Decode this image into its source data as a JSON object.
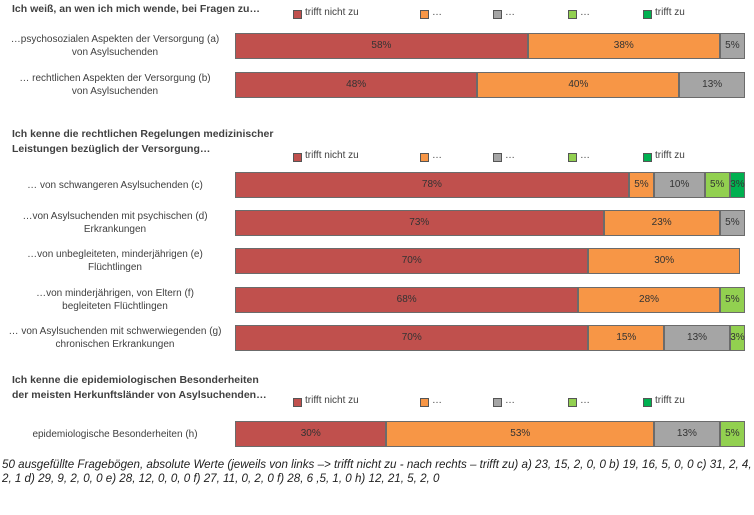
{
  "chart_data": [
    {
      "type": "bar",
      "stacked": true,
      "orientation": "horizontal",
      "title": "Ich weiß, an wen ich mich wende, bei Fragen zu…",
      "categories": [
        "…psychosozialen Aspekten der Versorgung (a)\nvon Asylsuchenden",
        "… rechtlichen Aspekten der Versorgung (b)\nvon Asylsuchenden"
      ],
      "series": [
        {
          "name": "trifft nicht zu",
          "color": "#c0504d",
          "values": [
            58,
            48
          ],
          "value_labels": [
            "58%",
            "48%"
          ]
        },
        {
          "name": "…",
          "color": "#f79646",
          "values": [
            38,
            40
          ],
          "value_labels": [
            "38%",
            "40%"
          ]
        },
        {
          "name": "…",
          "color": "#a5a5a5",
          "values": [
            5,
            13
          ],
          "value_labels": [
            "5%",
            "13%"
          ]
        },
        {
          "name": "…",
          "color": "#92d050",
          "values": [
            0,
            0
          ],
          "value_labels": [
            null,
            null
          ]
        },
        {
          "name": "trifft zu",
          "color": "#00b050",
          "values": [
            0,
            0
          ],
          "value_labels": [
            null,
            null
          ]
        }
      ]
    },
    {
      "type": "bar",
      "stacked": true,
      "orientation": "horizontal",
      "title": "Ich kenne die rechtlichen Regelungen medizinischer\nLeistungen bezüglich der Versorgung…",
      "categories": [
        "… von schwangeren Asylsuchenden (c)",
        "…von Asylsuchenden mit psychischen (d)\nErkrankungen",
        "…von unbegleiteten, minderjährigen (e)\nFlüchtlingen",
        "…von minderjährigen, von Eltern (f)\nbegleiteten Flüchtlingen",
        "… von Asylsuchenden mit schwerwiegenden (g)\nchronischen Erkrankungen"
      ],
      "series": [
        {
          "name": "trifft nicht zu",
          "color": "#c0504d",
          "values": [
            78,
            73,
            70,
            68,
            70
          ],
          "value_labels": [
            "78%",
            "73%",
            "70%",
            "68%",
            "70%"
          ]
        },
        {
          "name": "…",
          "color": "#f79646",
          "values": [
            5,
            23,
            30,
            28,
            15
          ],
          "value_labels": [
            "5%",
            "23%",
            "30%",
            "28%",
            "15%"
          ]
        },
        {
          "name": "…",
          "color": "#a5a5a5",
          "values": [
            10,
            5,
            0,
            0,
            13
          ],
          "value_labels": [
            "10%",
            "5%",
            null,
            null,
            "13%"
          ]
        },
        {
          "name": "…",
          "color": "#92d050",
          "values": [
            5,
            0,
            0,
            5,
            3
          ],
          "value_labels": [
            "5%",
            null,
            null,
            "5%",
            "3%"
          ]
        },
        {
          "name": "trifft zu",
          "color": "#00b050",
          "values": [
            3,
            0,
            0,
            0,
            0
          ],
          "value_labels": [
            "3%",
            null,
            null,
            null,
            null
          ]
        }
      ]
    },
    {
      "type": "bar",
      "stacked": true,
      "orientation": "horizontal",
      "title": "Ich kenne die epidemiologischen Besonderheiten\nder meisten Herkunftsländer von Asylsuchenden…",
      "categories": [
        "epidemiologische Besonderheiten (h)"
      ],
      "series": [
        {
          "name": "trifft nicht zu",
          "color": "#c0504d",
          "values": [
            30
          ],
          "value_labels": [
            "30%"
          ]
        },
        {
          "name": "…",
          "color": "#f79646",
          "values": [
            53
          ],
          "value_labels": [
            "53%"
          ]
        },
        {
          "name": "…",
          "color": "#a5a5a5",
          "values": [
            13
          ],
          "value_labels": [
            "13%"
          ]
        },
        {
          "name": "…",
          "color": "#92d050",
          "values": [
            5
          ],
          "value_labels": [
            "5%"
          ]
        },
        {
          "name": "trifft zu",
          "color": "#00b050",
          "values": [
            0
          ],
          "value_labels": [
            null
          ]
        }
      ]
    }
  ],
  "footnote": "50 ausgefüllte Fragebögen, absolute Werte (jeweils von links –> trifft nicht zu - nach rechts – trifft zu) a) 23, 15, 2, 0, 0 b) 19, 16, 5, 0, 0 c) 31, 2, 4, 2, 1 d) 29, 9, 2, 0, 0 e) 28, 12, 0, 0, 0 f) 27, 11, 0, 2, 0 f) 28, 6 ,5, 1, 0 h) 12, 21, 5, 2, 0"
}
